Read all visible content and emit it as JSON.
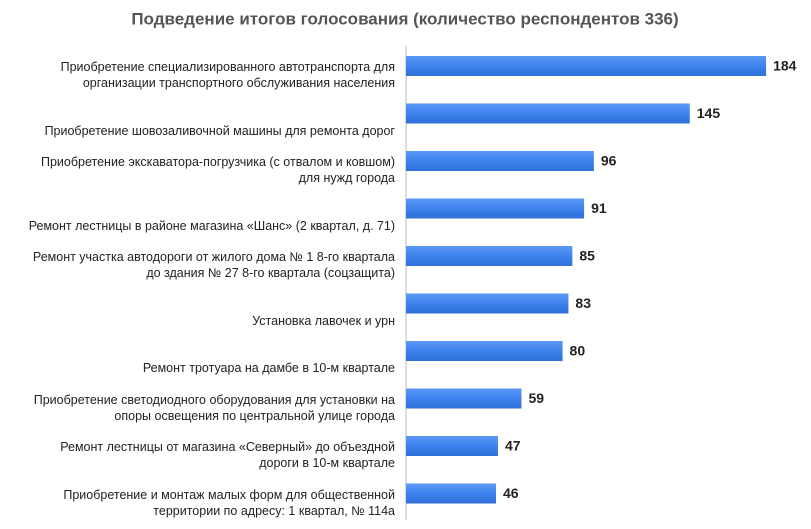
{
  "chart_data": {
    "type": "hbar",
    "title": "Подведение итогов голосования (количество респондентов 336)",
    "categories": [
      "Приобретение специализированного автотранспорта для\nорганизации транспортного обслуживания населения",
      "Приобретение шовозаливочной машины для ремонта дорог",
      "Приобретение экскаватора-погрузчика (с отвалом и ковшом)\nдля нужд города",
      "Ремонт лестницы в районе магазина «Шанс» (2 квартал, д. 71)",
      "Ремонт участка автодороги от жилого дома № 1 8-го квартала\nдо здания № 27 8-го квартала (соцзащита)",
      "Установка лавочек и урн",
      "Ремонт тротуара на дамбе в 10-м квартале",
      "Приобретение светодиодного оборудования для установки на\nопоры освещения по центральной улице города",
      "Ремонт лестницы от магазина «Северный» до объездной\nдороги в 10-м квартале",
      "Приобретение и монтаж малых форм для  общественной\nтерритории по адресу: 1 квартал, № 114а"
    ],
    "values": [
      184,
      145,
      96,
      91,
      85,
      83,
      80,
      59,
      47,
      46
    ],
    "color": "#3d82ee"
  }
}
